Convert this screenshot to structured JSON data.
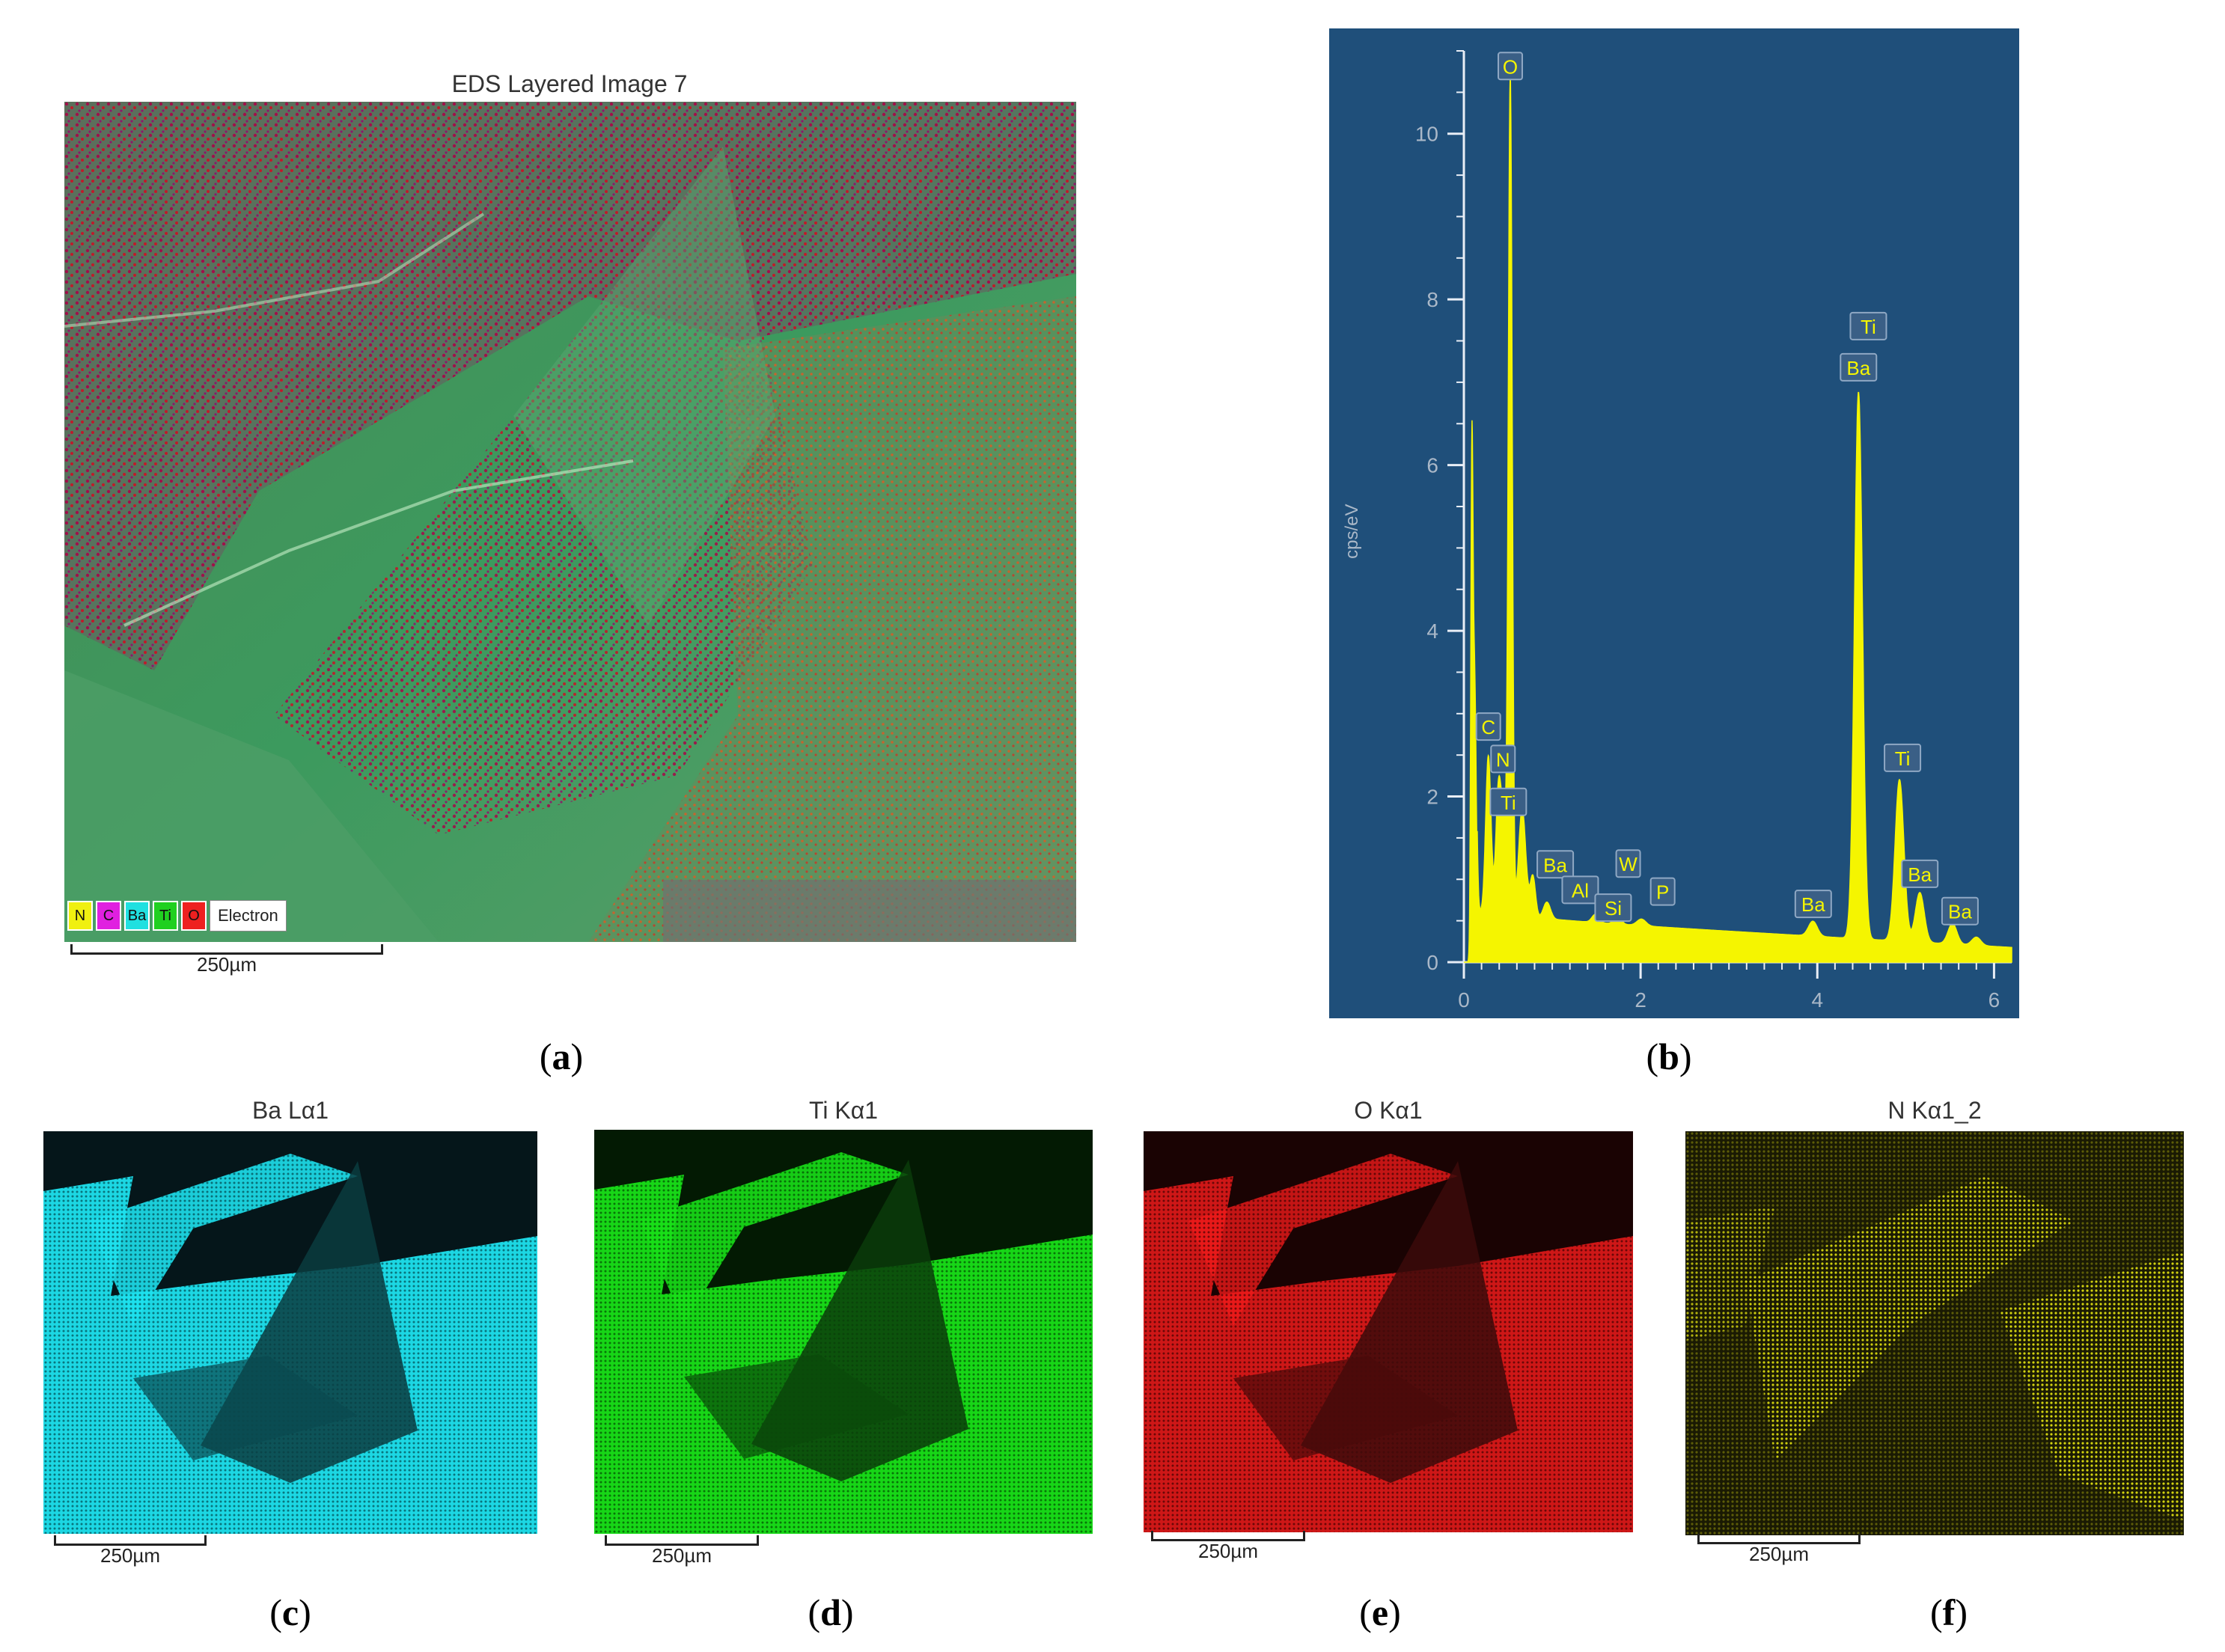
{
  "panel_a": {
    "title": "EDS Layered Image 7",
    "legend": [
      {
        "label": "N",
        "color": "#f0f010"
      },
      {
        "label": "C",
        "color": "#e020e0"
      },
      {
        "label": "Ba",
        "color": "#20e0e0"
      },
      {
        "label": "Ti",
        "color": "#20d020"
      },
      {
        "label": "O",
        "color": "#ee2020"
      }
    ],
    "legend_extra": "Electron",
    "scale": "250µm",
    "caption": "a"
  },
  "panel_b": {
    "caption": "b"
  },
  "maps": [
    {
      "title": "Ba Lα1",
      "scale": "250µm",
      "caption": "c",
      "color": "#1de1ee"
    },
    {
      "title": "Ti Kα1",
      "scale": "250µm",
      "caption": "d",
      "color": "#18e018"
    },
    {
      "title": "O Kα1",
      "scale": "250µm",
      "caption": "e",
      "color": "#ee1a1a"
    },
    {
      "title": "N Kα1_2",
      "scale": "250µm",
      "caption": "f",
      "color": "#e0e010"
    }
  ],
  "chart_data": {
    "type": "line",
    "title": "",
    "xlabel": "",
    "ylabel": "cps/eV",
    "xlim": [
      0,
      6.2
    ],
    "ylim": [
      0,
      11
    ],
    "x_ticks": [
      0,
      2,
      4,
      6
    ],
    "y_ticks": [
      0,
      2,
      4,
      6,
      8,
      10
    ],
    "grid": false,
    "background": "#1f4f7a",
    "series_color": "#f5f500",
    "peaks": [
      {
        "label": "C",
        "x": 0.277,
        "y": 2.5
      },
      {
        "label": "N",
        "x": 0.392,
        "y": 2.2
      },
      {
        "label": "Ti",
        "x": 0.452,
        "y": 1.7
      },
      {
        "label": "O",
        "x": 0.525,
        "y": 10.6
      },
      {
        "label": "Ba",
        "x": 0.78,
        "y": 1.0
      },
      {
        "label": "Al",
        "x": 1.486,
        "y": 0.62
      },
      {
        "label": "W",
        "x": 1.775,
        "y": 0.63
      },
      {
        "label": "Si",
        "x": 1.74,
        "y": 0.55
      },
      {
        "label": "P",
        "x": 2.013,
        "y": 0.6
      },
      {
        "label": "Ba",
        "x": 3.954,
        "y": 0.45
      },
      {
        "label": "Ti",
        "x": 4.51,
        "y": 7.1
      },
      {
        "label": "Ba",
        "x": 4.466,
        "y": 7.0
      },
      {
        "label": "Ti",
        "x": 4.93,
        "y": 2.25
      },
      {
        "label": "Ba",
        "x": 5.16,
        "y": 0.85
      },
      {
        "label": "Ba",
        "x": 5.53,
        "y": 0.4
      }
    ]
  }
}
